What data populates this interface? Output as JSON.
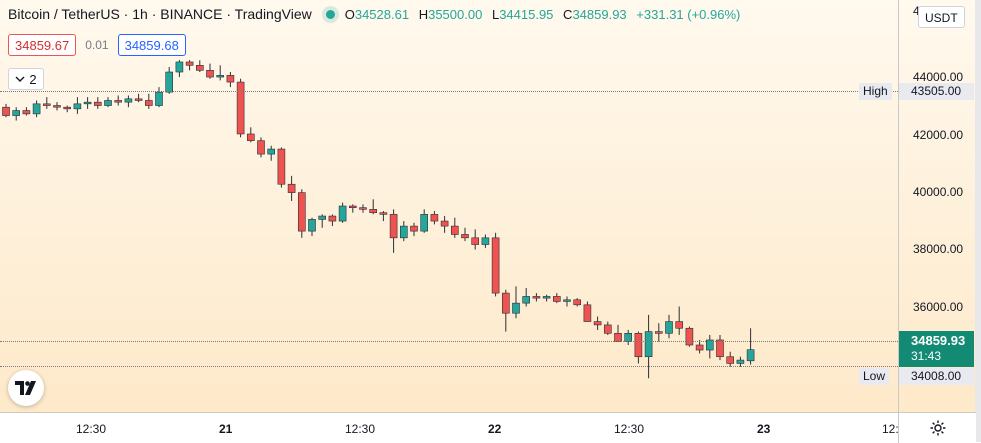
{
  "legend": {
    "symbol": "Bitcoin / TetherUS · 1h · BINANCE · TradingView",
    "open": "34528.61",
    "high": "35500.00",
    "low": "34415.95",
    "close": "34859.93",
    "change": "+331.31 (+0.96%)"
  },
  "trade": {
    "sell": "34859.67",
    "spread": "0.01",
    "buy": "34859.68"
  },
  "indicators_toggle": "2",
  "price_scale": {
    "currency": "USDT",
    "top_partial": "4",
    "ticks": [
      "44000.00",
      "42000.00",
      "40000.00",
      "38000.00",
      "36000.00"
    ],
    "high_label": "High",
    "high_value": "43505.00",
    "low_label": "Low",
    "low_value": "34008.00",
    "current_price": "34859.93",
    "countdown": "31:43"
  },
  "time_scale": {
    "ticks": [
      "12:30",
      "21",
      "12:30",
      "22",
      "12:30",
      "23",
      "12:"
    ]
  },
  "colors": {
    "up": "#26a69a",
    "down": "#ef5350",
    "current": "#138a73"
  },
  "chart_data": {
    "type": "candlestick",
    "y_range": [
      33000,
      45300
    ],
    "candles": [
      [
        42100,
        42200,
        41800,
        41850
      ],
      [
        41850,
        42100,
        41700,
        42000
      ],
      [
        42000,
        42100,
        41850,
        41900
      ],
      [
        41900,
        42300,
        41800,
        42200
      ],
      [
        42200,
        42400,
        42050,
        42150
      ],
      [
        42150,
        42250,
        42000,
        42100
      ],
      [
        42100,
        42150,
        41950,
        42050
      ],
      [
        42050,
        42400,
        41900,
        42200
      ],
      [
        42200,
        42400,
        42050,
        42250
      ],
      [
        42250,
        42400,
        42050,
        42150
      ],
      [
        42150,
        42400,
        42100,
        42300
      ],
      [
        42300,
        42450,
        42150,
        42250
      ],
      [
        42250,
        42450,
        42100,
        42350
      ],
      [
        42350,
        42500,
        42250,
        42300
      ],
      [
        42300,
        42500,
        42050,
        42150
      ],
      [
        42150,
        42700,
        42100,
        42550
      ],
      [
        42550,
        43300,
        42500,
        43150
      ],
      [
        43150,
        43505,
        43000,
        43450
      ],
      [
        43450,
        43505,
        43200,
        43350
      ],
      [
        43350,
        43500,
        43150,
        43200
      ],
      [
        43200,
        43400,
        42950,
        43000
      ],
      [
        43000,
        43350,
        42900,
        43050
      ],
      [
        43050,
        43150,
        42700,
        42850
      ],
      [
        42850,
        42950,
        41200,
        41300
      ],
      [
        41300,
        41500,
        41050,
        41100
      ],
      [
        41100,
        41200,
        40600,
        40700
      ],
      [
        40700,
        40950,
        40500,
        40850
      ],
      [
        40850,
        40900,
        39700,
        39800
      ],
      [
        39800,
        40050,
        39300,
        39550
      ],
      [
        39550,
        39650,
        38200,
        38400
      ],
      [
        38400,
        38800,
        38250,
        38750
      ],
      [
        38750,
        38900,
        38500,
        38850
      ],
      [
        38850,
        38900,
        38550,
        38700
      ],
      [
        38700,
        39250,
        38650,
        39150
      ],
      [
        39150,
        39200,
        38950,
        39100
      ],
      [
        39100,
        39200,
        38950,
        39050
      ],
      [
        39050,
        39350,
        38900,
        38950
      ],
      [
        38950,
        39000,
        38700,
        38900
      ],
      [
        38900,
        39050,
        37750,
        38200
      ],
      [
        38200,
        38700,
        38100,
        38550
      ],
      [
        38550,
        38650,
        38250,
        38400
      ],
      [
        38400,
        39050,
        38350,
        38900
      ],
      [
        38900,
        39000,
        38600,
        38700
      ],
      [
        38700,
        38850,
        38350,
        38550
      ],
      [
        38550,
        38800,
        38200,
        38300
      ],
      [
        38300,
        38500,
        38100,
        38200
      ],
      [
        38200,
        38450,
        37850,
        38000
      ],
      [
        38000,
        38300,
        37900,
        38200
      ],
      [
        38200,
        38350,
        36450,
        36550
      ],
      [
        36550,
        36650,
        35400,
        35950
      ],
      [
        35950,
        36750,
        35800,
        36250
      ],
      [
        36250,
        36700,
        36150,
        36450
      ],
      [
        36450,
        36550,
        36300,
        36400
      ],
      [
        36400,
        36500,
        36300,
        36450
      ],
      [
        36450,
        36550,
        36250,
        36300
      ],
      [
        36300,
        36450,
        36150,
        36350
      ],
      [
        36350,
        36400,
        36150,
        36200
      ],
      [
        36200,
        36300,
        35800,
        35700
      ],
      [
        35700,
        35850,
        35450,
        35600
      ],
      [
        35600,
        35700,
        35300,
        35350
      ],
      [
        35350,
        35600,
        35100,
        35100
      ],
      [
        35100,
        35450,
        35000,
        35350
      ],
      [
        35350,
        35400,
        34450,
        34650
      ],
      [
        34650,
        35900,
        34008,
        35400
      ],
      [
        35400,
        35650,
        35100,
        35350
      ],
      [
        35350,
        35900,
        35200,
        35700
      ],
      [
        35700,
        36150,
        35300,
        35500
      ],
      [
        35500,
        35550,
        34950,
        35000
      ],
      [
        35000,
        35150,
        34750,
        34850
      ],
      [
        34850,
        35300,
        34600,
        35150
      ],
      [
        35150,
        35300,
        34550,
        34650
      ],
      [
        34650,
        34800,
        34350,
        34450
      ],
      [
        34450,
        34650,
        34350,
        34550
      ],
      [
        34528.61,
        35500,
        34415.95,
        34859.93
      ]
    ]
  }
}
